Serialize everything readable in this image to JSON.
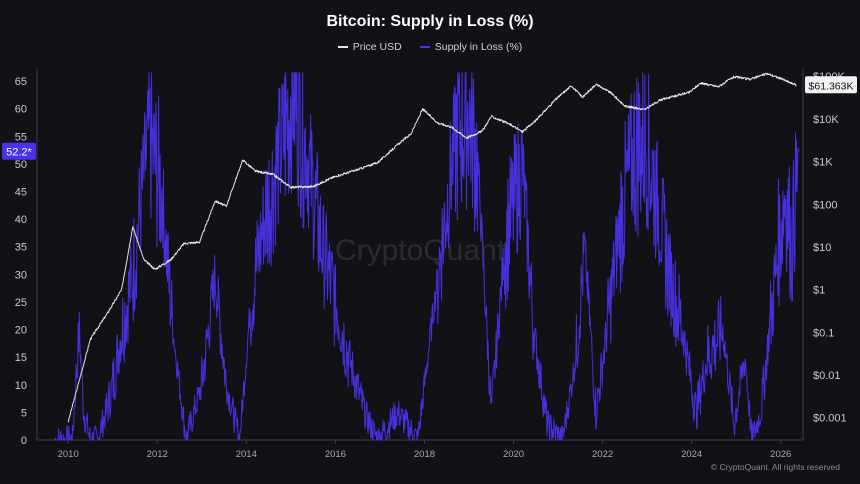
{
  "chart_data": {
    "type": "line",
    "title": "Bitcoin: Supply in Loss (%)",
    "series": [
      {
        "name": "Price USD",
        "color": "#e6e6e6",
        "axis": "right",
        "scale": "log",
        "points": [
          [
            2010.0,
            0.0008
          ],
          [
            2010.5,
            0.07
          ],
          [
            2010.9,
            0.3
          ],
          [
            2011.2,
            1
          ],
          [
            2011.45,
            30
          ],
          [
            2011.7,
            5
          ],
          [
            2011.95,
            3
          ],
          [
            2012.3,
            5
          ],
          [
            2012.6,
            12
          ],
          [
            2012.95,
            13
          ],
          [
            2013.3,
            120
          ],
          [
            2013.55,
            90
          ],
          [
            2013.92,
            1100
          ],
          [
            2014.2,
            600
          ],
          [
            2014.6,
            500
          ],
          [
            2015.0,
            250
          ],
          [
            2015.5,
            260
          ],
          [
            2015.95,
            430
          ],
          [
            2016.5,
            650
          ],
          [
            2016.95,
            950
          ],
          [
            2017.4,
            2500
          ],
          [
            2017.7,
            4500
          ],
          [
            2017.96,
            17000
          ],
          [
            2018.3,
            8000
          ],
          [
            2018.6,
            6500
          ],
          [
            2018.95,
            3600
          ],
          [
            2019.3,
            5200
          ],
          [
            2019.5,
            11500
          ],
          [
            2019.95,
            7200
          ],
          [
            2020.2,
            5000
          ],
          [
            2020.5,
            9200
          ],
          [
            2020.95,
            29000
          ],
          [
            2021.3,
            60000
          ],
          [
            2021.55,
            32000
          ],
          [
            2021.85,
            65000
          ],
          [
            2022.2,
            40000
          ],
          [
            2022.5,
            20000
          ],
          [
            2022.95,
            16500
          ],
          [
            2023.3,
            28000
          ],
          [
            2023.95,
            42000
          ],
          [
            2024.2,
            69000
          ],
          [
            2024.6,
            57000
          ],
          [
            2024.95,
            97000
          ],
          [
            2025.3,
            85000
          ],
          [
            2025.7,
            115000
          ],
          [
            2026.0,
            88000
          ],
          [
            2026.35,
            61363
          ]
        ]
      },
      {
        "name": "Supply in Loss (%)",
        "color": "#4a33e6",
        "axis": "left",
        "scale": "linear",
        "points": [
          [
            2009.7,
            0
          ],
          [
            2010.1,
            0
          ],
          [
            2010.15,
            8
          ],
          [
            2010.25,
            20
          ],
          [
            2010.35,
            5
          ],
          [
            2010.5,
            0
          ],
          [
            2010.65,
            0
          ],
          [
            2010.85,
            5
          ],
          [
            2011.0,
            10
          ],
          [
            2011.2,
            20
          ],
          [
            2011.45,
            30
          ],
          [
            2011.8,
            55
          ],
          [
            2012.1,
            45
          ],
          [
            2012.35,
            20
          ],
          [
            2012.65,
            0
          ],
          [
            2013.0,
            10
          ],
          [
            2013.3,
            30
          ],
          [
            2013.55,
            10
          ],
          [
            2013.85,
            0
          ],
          [
            2014.1,
            25
          ],
          [
            2014.4,
            40
          ],
          [
            2014.85,
            55
          ],
          [
            2015.05,
            64
          ],
          [
            2015.3,
            55
          ],
          [
            2015.7,
            35
          ],
          [
            2016.0,
            25
          ],
          [
            2016.3,
            15
          ],
          [
            2016.65,
            5
          ],
          [
            2016.95,
            0
          ],
          [
            2017.4,
            5
          ],
          [
            2017.85,
            0
          ],
          [
            2018.3,
            30
          ],
          [
            2018.7,
            55
          ],
          [
            2018.98,
            60
          ],
          [
            2019.2,
            50
          ],
          [
            2019.5,
            5
          ],
          [
            2019.8,
            35
          ],
          [
            2020.2,
            50
          ],
          [
            2020.45,
            20
          ],
          [
            2020.75,
            3
          ],
          [
            2021.1,
            0
          ],
          [
            2021.4,
            15
          ],
          [
            2021.6,
            35
          ],
          [
            2021.85,
            5
          ],
          [
            2022.1,
            20
          ],
          [
            2022.4,
            40
          ],
          [
            2022.7,
            52
          ],
          [
            2022.95,
            55
          ],
          [
            2023.2,
            45
          ],
          [
            2023.5,
            30
          ],
          [
            2023.8,
            20
          ],
          [
            2024.1,
            5
          ],
          [
            2024.35,
            15
          ],
          [
            2024.7,
            20
          ],
          [
            2024.95,
            3
          ],
          [
            2025.2,
            15
          ],
          [
            2025.35,
            0
          ],
          [
            2025.55,
            5
          ],
          [
            2025.75,
            20
          ],
          [
            2025.95,
            35
          ],
          [
            2026.1,
            45
          ],
          [
            2026.25,
            35
          ],
          [
            2026.4,
            52.2
          ]
        ]
      }
    ],
    "x": {
      "ticks": [
        "2010",
        "2012",
        "2014",
        "2016",
        "2018",
        "2020",
        "2022",
        "2024",
        "2026"
      ],
      "range": [
        2009.3,
        2026.5
      ]
    },
    "y_left": {
      "ticks": [
        "0",
        "5",
        "10",
        "15",
        "20",
        "25",
        "30",
        "35",
        "40",
        "45",
        "50",
        "55",
        "60",
        "65"
      ],
      "range": [
        0,
        67
      ]
    },
    "y_right": {
      "ticks": [
        "$0.001",
        "$0.01",
        "$0.1",
        "$1",
        "$10",
        "$100",
        "$1K",
        "$10K",
        "$100K"
      ],
      "range": [
        0.0003,
        140000
      ]
    },
    "current_labels": {
      "left": "52.2*",
      "right": "$61.363K"
    },
    "grid": false,
    "legend_position": "top-center"
  },
  "watermark": "CryptoQuant",
  "copyright": "© CryptoQuant. All rights reserved"
}
